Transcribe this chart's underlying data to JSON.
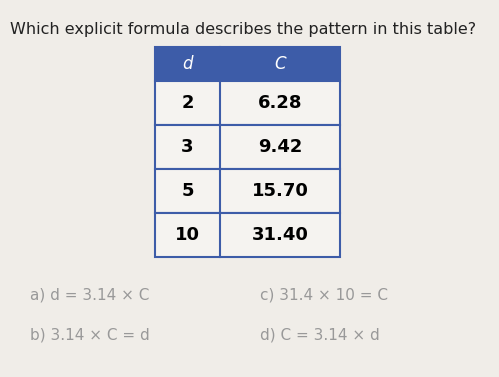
{
  "question": "Which explicit formula describes the pattern in this table?",
  "table_header": [
    "d",
    "C"
  ],
  "table_rows": [
    [
      "2",
      "6.28"
    ],
    [
      "3",
      "9.42"
    ],
    [
      "5",
      "15.70"
    ],
    [
      "10",
      "31.40"
    ]
  ],
  "header_bg": "#3d5ca8",
  "header_text_color": "#ffffff",
  "row_bg": "#f5f3f0",
  "row_border": "#3d5ca8",
  "answer_a": "a) d = 3.14 × C",
  "answer_b": "b) 3.14 × C = d",
  "answer_c": "c) 31.4 × 10 = C",
  "answer_d": "d) C = 3.14 × d",
  "bg_color": "#f0ede8",
  "question_fontsize": 11.5,
  "answer_fontsize": 11,
  "table_fontsize": 12,
  "answer_color": "#999999",
  "question_color": "#222222"
}
